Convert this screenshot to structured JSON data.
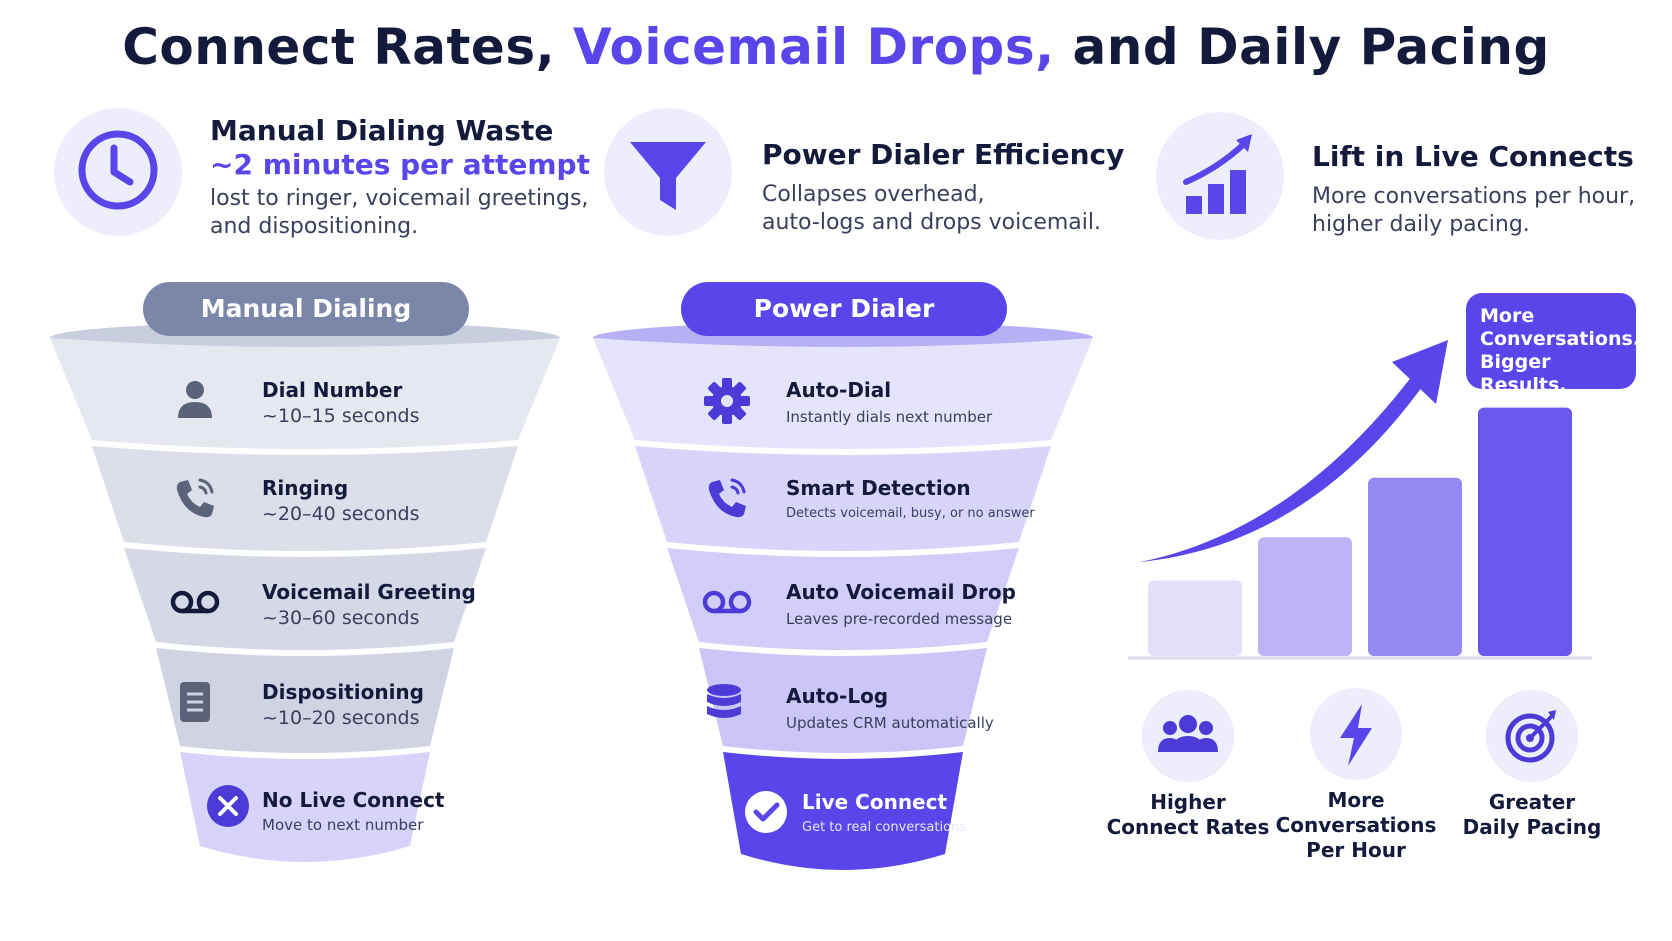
{
  "title": {
    "part1": "Connect Rates,",
    "part2": "Voicemail Drops,",
    "part3": "and Daily Pacing"
  },
  "features": [
    {
      "icon": "clock-icon",
      "title": "Manual Dialing Waste",
      "highlight": "~2 minutes per attempt",
      "desc_line1": "lost to ringer, voicemail greetings,",
      "desc_line2": "and dispositioning."
    },
    {
      "icon": "funnel-icon",
      "title": "Power Dialer Efficiency",
      "desc_line1": "Collapses overhead,",
      "desc_line2": "auto-logs and drops voicemail."
    },
    {
      "icon": "bar-chart-up-icon",
      "title": "Lift in Live Connects",
      "desc_line1": "More conversations per hour,",
      "desc_line2": "higher daily pacing."
    }
  ],
  "manual_funnel": {
    "label": "Manual Dialing",
    "stages": [
      {
        "icon": "person-icon",
        "name": "Dial Number",
        "desc": "~10–15 seconds"
      },
      {
        "icon": "phone-ringing-icon",
        "name": "Ringing",
        "desc": "~20–40 seconds"
      },
      {
        "icon": "voicemail-icon",
        "name": "Voicemail Greeting",
        "desc": "~30–60 seconds"
      },
      {
        "icon": "document-icon",
        "name": "Dispositioning",
        "desc": "~10–20 seconds"
      },
      {
        "icon": "x-circle-icon",
        "name": "No Live Connect",
        "desc": "Move to next number"
      }
    ]
  },
  "power_funnel": {
    "label": "Power Dialer",
    "stages": [
      {
        "icon": "gear-icon",
        "name": "Auto-Dial",
        "desc": "Instantly dials next number"
      },
      {
        "icon": "phone-ringing-icon",
        "name": "Smart Detection",
        "desc": "Detects voicemail, busy, or no answer"
      },
      {
        "icon": "voicemail-icon",
        "name": "Auto Voicemail Drop",
        "desc": "Leaves pre-recorded message"
      },
      {
        "icon": "database-icon",
        "name": "Auto-Log",
        "desc": "Updates CRM automatically"
      },
      {
        "icon": "check-circle-icon",
        "name": "Live Connect",
        "desc": "Get to real conversations"
      }
    ]
  },
  "results": {
    "badge_line1": "More",
    "badge_line2": "Conversations.",
    "badge_line3": "Bigger Results.",
    "bars": [
      0.28,
      0.44,
      0.66,
      0.92
    ],
    "items": [
      {
        "icon": "group-icon",
        "line1": "Higher",
        "line2": "Connect Rates",
        "line3": ""
      },
      {
        "icon": "lightning-icon",
        "line1": "More",
        "line2": "Conversations",
        "line3": "Per Hour"
      },
      {
        "icon": "target-icon",
        "line1": "Greater",
        "line2": "Daily Pacing",
        "line3": ""
      }
    ]
  },
  "colors": {
    "accent": "#5a45ea",
    "dark_text": "#141a3c",
    "manual_pill": "#7c86a8",
    "manual_band": "#dcdfe9",
    "power_band": "#d9d5fa",
    "power_bottom": "#5a45ea",
    "icon_bg": "#eeedfb"
  }
}
